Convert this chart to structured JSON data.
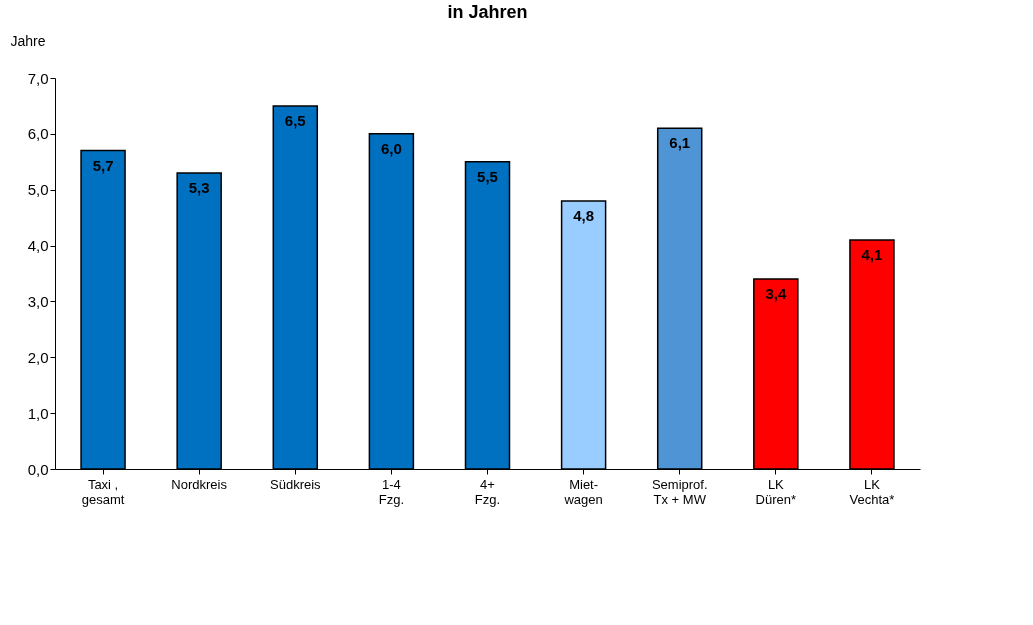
{
  "chart_data": {
    "type": "bar",
    "title": "in Jahren",
    "ylabel": "Jahre",
    "categories": [
      "Taxi ,\ngesamt",
      "Nordkreis",
      "Südkreis",
      "1-4\nFzg.",
      "4+\nFzg.",
      "Miet-\nwagen",
      "Semiprof.\nTx + MW",
      "LK\nDüren*",
      "LK\nVechta*"
    ],
    "values": [
      5.7,
      5.3,
      6.5,
      6.0,
      5.5,
      4.8,
      6.1,
      3.4,
      4.1
    ],
    "colors": [
      "#0070c0",
      "#0070c0",
      "#0070c0",
      "#0070c0",
      "#0070c0",
      "#99ccff",
      "#4f95d6",
      "#ff0000",
      "#ff0000"
    ],
    "value_labels": [
      "5,7",
      "5,3",
      "6,5",
      "6,0",
      "5,5",
      "4,8",
      "6,1",
      "3,4",
      "4,1"
    ],
    "ylim": [
      0,
      7
    ],
    "yticks": [
      {
        "value": 0,
        "label": "0,0"
      },
      {
        "value": 1,
        "label": "1,0"
      },
      {
        "value": 2,
        "label": "2,0"
      },
      {
        "value": 3,
        "label": "3,0"
      },
      {
        "value": 4,
        "label": "4,0"
      },
      {
        "value": 5,
        "label": "5,0"
      },
      {
        "value": 6,
        "label": "6,0"
      },
      {
        "value": 7,
        "label": "7,0"
      }
    ],
    "grid": false
  }
}
